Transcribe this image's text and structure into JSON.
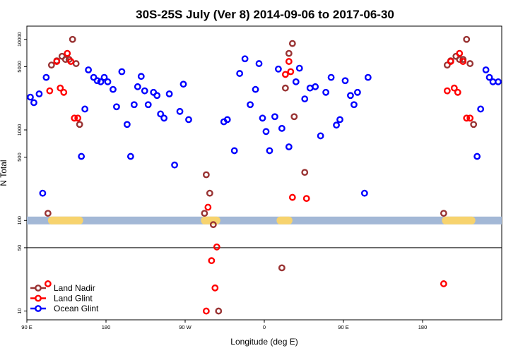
{
  "chart_data": {
    "type": "scatter",
    "title": "30S-25S July (Ver 8)   2014-09-06 to 2017-06-30",
    "xlabel": "Longitude (deg E)",
    "ylabel": "N Total",
    "y_scale": "log",
    "xlim": [
      -90,
      180
    ],
    "ylim": [
      8,
      14000
    ],
    "x_ticks": [
      {
        "value": -90,
        "label": "90 E"
      },
      {
        "value": -45,
        "label": "180"
      },
      {
        "value": 0,
        "label": "90 W"
      },
      {
        "value": 45,
        "label": "0"
      },
      {
        "value": 90,
        "label": "90 E"
      },
      {
        "value": 135,
        "label": "180"
      }
    ],
    "y_ticks": [
      {
        "value": 10,
        "label": "10"
      },
      {
        "value": 50,
        "label": "50"
      },
      {
        "value": 100,
        "label": "100"
      },
      {
        "value": 500,
        "label": "500"
      },
      {
        "value": 1000,
        "label": "1000"
      },
      {
        "value": 5000,
        "label": "5000"
      },
      {
        "value": 10000,
        "label": "10000"
      }
    ],
    "reference_line": 50,
    "land_band": {
      "y_value": 100,
      "ocean_color": "#a3b8d6",
      "land_color": "#f7d36e",
      "land_segments": [
        [
          -78,
          -58
        ],
        [
          9,
          20
        ],
        [
          52,
          61
        ],
        [
          146,
          165
        ]
      ]
    },
    "legend": {
      "position": "bottom-left"
    },
    "series": [
      {
        "name": "Land Nadir",
        "color": "#993333",
        "points": [
          [
            -78,
            120
          ],
          [
            -76,
            5200
          ],
          [
            -73,
            5800
          ],
          [
            -70,
            6500
          ],
          [
            -68,
            6000
          ],
          [
            -66,
            6000
          ],
          [
            -64,
            10000
          ],
          [
            -62,
            5400
          ],
          [
            -60,
            1150
          ],
          [
            11,
            120
          ],
          [
            12,
            320
          ],
          [
            14,
            200
          ],
          [
            16,
            90
          ],
          [
            19,
            10
          ],
          [
            55,
            30
          ],
          [
            57,
            2900
          ],
          [
            59,
            7000
          ],
          [
            61,
            9000
          ],
          [
            62,
            1400
          ],
          [
            68,
            340
          ],
          [
            147,
            120
          ],
          [
            149,
            5200
          ],
          [
            151,
            5800
          ],
          [
            154,
            6500
          ],
          [
            156,
            6000
          ],
          [
            158,
            6000
          ],
          [
            160,
            10000
          ],
          [
            162,
            5400
          ],
          [
            164,
            1150
          ]
        ]
      },
      {
        "name": "Land Glint",
        "color": "#ff0000",
        "points": [
          [
            -78,
            20
          ],
          [
            -77,
            2700
          ],
          [
            -73,
            5700
          ],
          [
            -71,
            2900
          ],
          [
            -69,
            2600
          ],
          [
            -67,
            7000
          ],
          [
            -65,
            5700
          ],
          [
            -63,
            1350
          ],
          [
            -61,
            1350
          ],
          [
            12,
            10
          ],
          [
            13,
            140
          ],
          [
            15,
            36
          ],
          [
            17,
            18
          ],
          [
            18,
            51
          ],
          [
            57,
            4100
          ],
          [
            59,
            5700
          ],
          [
            60,
            4400
          ],
          [
            61,
            180
          ],
          [
            69,
            175
          ],
          [
            147,
            20
          ],
          [
            149,
            2700
          ],
          [
            151,
            5700
          ],
          [
            153,
            2900
          ],
          [
            155,
            2600
          ],
          [
            156,
            7000
          ],
          [
            158,
            5700
          ],
          [
            160,
            1350
          ],
          [
            162,
            1350
          ]
        ]
      },
      {
        "name": "Ocean Glint",
        "color": "#0000ff",
        "points": [
          [
            -88,
            2300
          ],
          [
            -86,
            2000
          ],
          [
            -83,
            2500
          ],
          [
            -81,
            200
          ],
          [
            -79,
            3800
          ],
          [
            -59,
            510
          ],
          [
            -57,
            1700
          ],
          [
            -55,
            4600
          ],
          [
            -52,
            3800
          ],
          [
            -50,
            3500
          ],
          [
            -48,
            3400
          ],
          [
            -46,
            3800
          ],
          [
            -44,
            3400
          ],
          [
            -41,
            2800
          ],
          [
            -39,
            1800
          ],
          [
            -36,
            4400
          ],
          [
            -33,
            1150
          ],
          [
            -31,
            510
          ],
          [
            -29,
            1900
          ],
          [
            -27,
            3000
          ],
          [
            -25,
            3900
          ],
          [
            -23,
            2700
          ],
          [
            -21,
            1900
          ],
          [
            -18,
            2600
          ],
          [
            -16,
            2400
          ],
          [
            -14,
            1500
          ],
          [
            -12,
            1350
          ],
          [
            -9,
            2500
          ],
          [
            -6,
            410
          ],
          [
            -3,
            1600
          ],
          [
            -1,
            3200
          ],
          [
            2,
            1300
          ],
          [
            22,
            1230
          ],
          [
            24,
            1300
          ],
          [
            28,
            590
          ],
          [
            31,
            4200
          ],
          [
            34,
            6100
          ],
          [
            37,
            1900
          ],
          [
            40,
            2800
          ],
          [
            42,
            5400
          ],
          [
            44,
            1350
          ],
          [
            46,
            960
          ],
          [
            48,
            590
          ],
          [
            51,
            1400
          ],
          [
            53,
            4700
          ],
          [
            55,
            1040
          ],
          [
            59,
            650
          ],
          [
            63,
            3400
          ],
          [
            65,
            4800
          ],
          [
            68,
            2200
          ],
          [
            71,
            2900
          ],
          [
            74,
            3000
          ],
          [
            77,
            860
          ],
          [
            80,
            2600
          ],
          [
            83,
            3800
          ],
          [
            86,
            1130
          ],
          [
            88,
            1300
          ],
          [
            91,
            3500
          ],
          [
            94,
            2400
          ],
          [
            96,
            1900
          ],
          [
            98,
            2600
          ],
          [
            102,
            200
          ],
          [
            104,
            3800
          ],
          [
            166,
            510
          ],
          [
            168,
            1700
          ],
          [
            171,
            4600
          ],
          [
            173,
            3800
          ],
          [
            175,
            3400
          ],
          [
            178,
            3400
          ]
        ]
      }
    ]
  }
}
